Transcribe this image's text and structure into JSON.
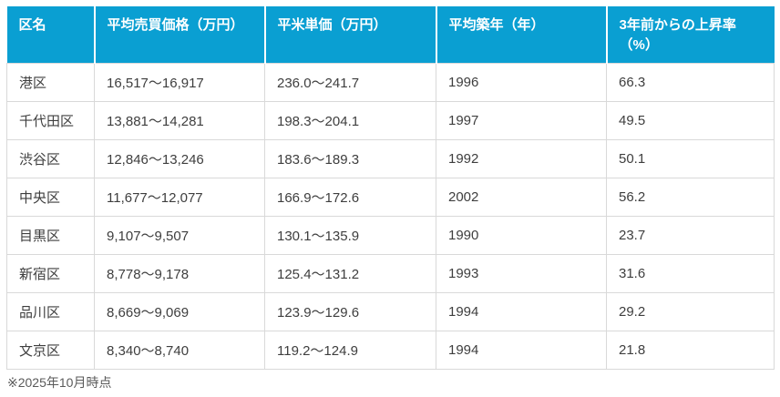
{
  "chart_data": {
    "type": "table",
    "columns": [
      "区名",
      "平均売買価格（万円）",
      "平米単価（万円）",
      "平均築年（年）",
      "3年前からの上昇率（%）"
    ],
    "rows": [
      [
        "港区",
        "16,517〜16,917",
        "236.0〜241.7",
        "1996",
        "66.3"
      ],
      [
        "千代田区",
        "13,881〜14,281",
        "198.3〜204.1",
        "1997",
        "49.5"
      ],
      [
        "渋谷区",
        "12,846〜13,246",
        "183.6〜189.3",
        "1992",
        "50.1"
      ],
      [
        "中央区",
        "11,677〜12,077",
        "166.9〜172.6",
        "2002",
        "56.2"
      ],
      [
        "目黒区",
        "9,107〜9,507",
        "130.1〜135.9",
        "1990",
        "23.7"
      ],
      [
        "新宿区",
        "8,778〜9,178",
        "125.4〜131.2",
        "1993",
        "31.6"
      ],
      [
        "品川区",
        "8,669〜9,069",
        "123.9〜129.6",
        "1994",
        "29.2"
      ],
      [
        "文京区",
        "8,340〜8,740",
        "119.2〜124.9",
        "1994",
        "21.8"
      ]
    ]
  },
  "footnote": "※2025年10月時点",
  "colors": {
    "header_bg": "#0a9fd2",
    "header_text": "#ffffff",
    "body_text": "#3e3e3e",
    "border": "#d9d9d9",
    "footnote_text": "#5a5a5a"
  }
}
